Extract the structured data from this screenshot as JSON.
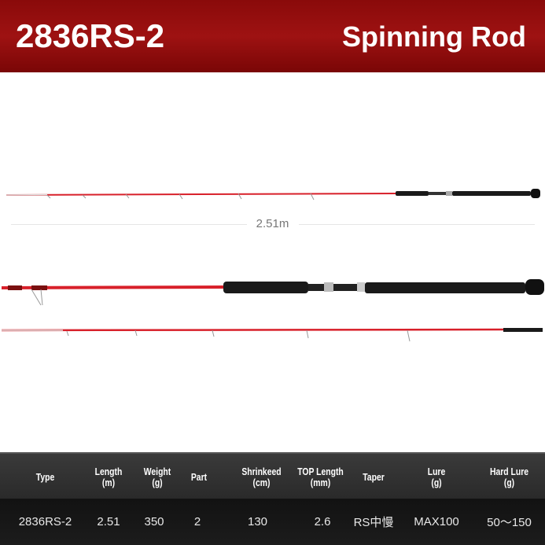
{
  "header": {
    "model": "2836RS-2",
    "kind": "Spinning Rod",
    "background": "#8a0a0a"
  },
  "rod": {
    "length_label": "2.51m",
    "blank_color": "#d8202a",
    "grip_color": "#1a1a1a"
  },
  "table": {
    "headers": [
      "Type",
      "Length\n(m)",
      "Weight\n(g)",
      "Part",
      "Shrinkeed\n(cm)",
      "TOP Length\n(mm)",
      "Taper",
      "Lure\n(g)",
      "Hard Lure\n(g)"
    ],
    "row": [
      "2836RS-2",
      "2.51",
      "350",
      "2",
      "130",
      "2.6",
      "RS中慢",
      "MAX100",
      "50～150"
    ]
  }
}
